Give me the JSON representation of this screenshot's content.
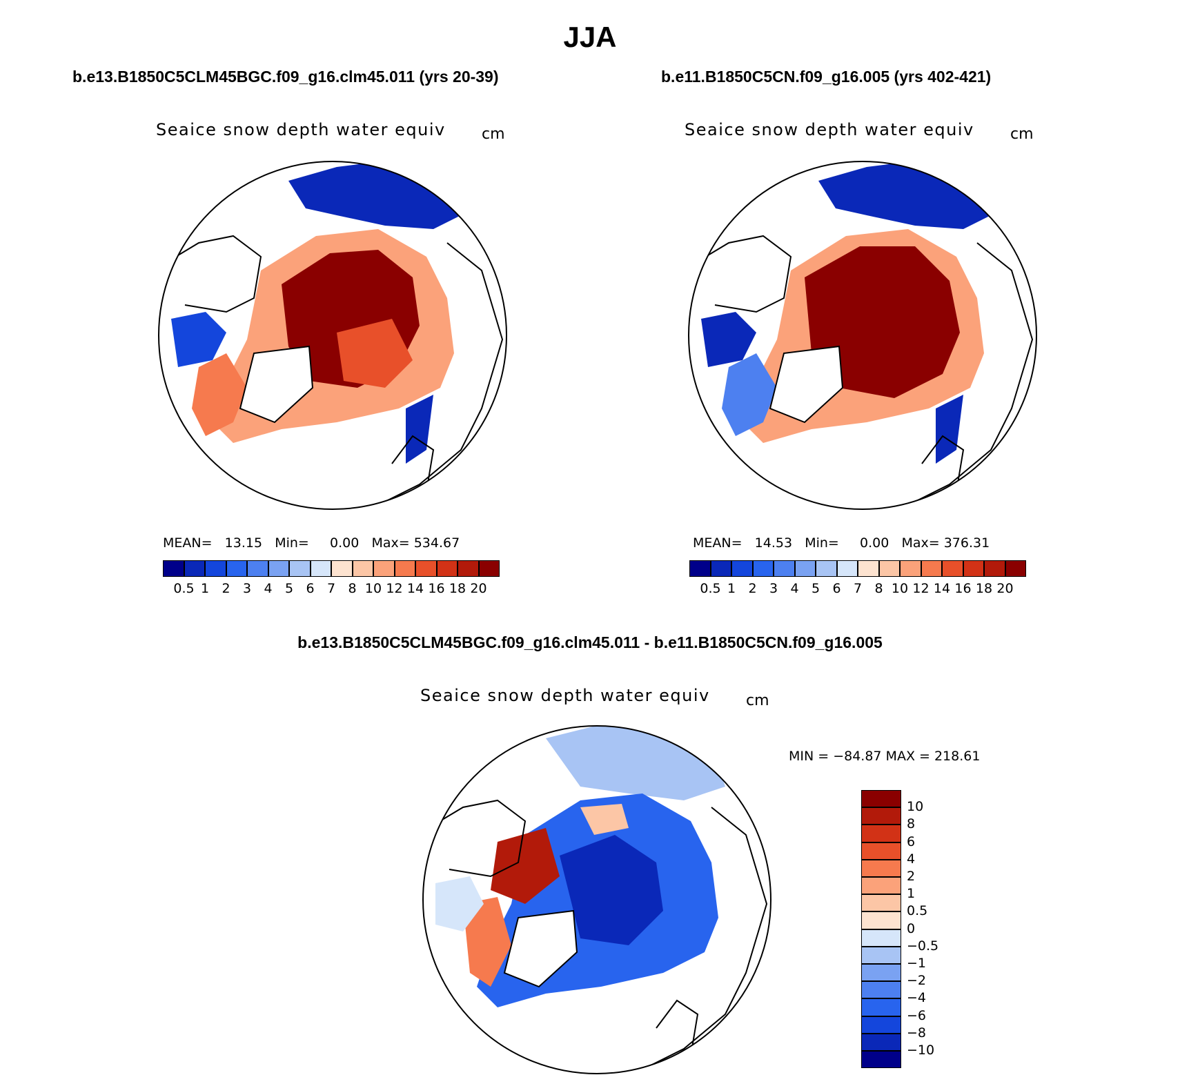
{
  "title": "JJA",
  "panels": [
    {
      "case_title": "b.e13.B1850C5CLM45BGC.f09_g16.clm45.011 (yrs 20-39)",
      "variable": "Seaice snow depth water equiv",
      "units": "cm",
      "stats": {
        "mean_label": "MEAN=",
        "mean": "13.15",
        "min_label": "Min=",
        "min": "0.00",
        "max_label": "Max=",
        "max": "534.67"
      }
    },
    {
      "case_title": "b.e11.B1850C5CN.f09_g16.005 (yrs 402-421)",
      "variable": "Seaice snow depth water equiv",
      "units": "cm",
      "stats": {
        "mean_label": "MEAN=",
        "mean": "14.53",
        "min_label": "Min=",
        "min": "0.00",
        "max_label": "Max=",
        "max": "376.31"
      }
    },
    {
      "case_title": "b.e13.B1850C5CLM45BGC.f09_g16.clm45.011 - b.e11.B1850C5CN.f09_g16.005",
      "variable": "Seaice snow depth water equiv",
      "units": "cm",
      "stats": {
        "text": "MIN = −84.87 MAX = 218.61"
      }
    }
  ],
  "colorbar_abs": {
    "labels": [
      "0.5",
      "1",
      "2",
      "3",
      "4",
      "5",
      "6",
      "7",
      "8",
      "10",
      "12",
      "14",
      "16",
      "18",
      "20"
    ],
    "colors": [
      "#00008a",
      "#0a28b8",
      "#1446dc",
      "#2864ee",
      "#4d80f0",
      "#7aa2f2",
      "#a8c4f4",
      "#d6e6fa",
      "#fde3d0",
      "#fcc6a6",
      "#fba27a",
      "#f67a4e",
      "#e8502a",
      "#d23216",
      "#b21a0a",
      "#8a0000"
    ]
  },
  "colorbar_diff": {
    "labels": [
      "10",
      "8",
      "6",
      "4",
      "2",
      "1",
      "0.5",
      "0",
      "−0.5",
      "−1",
      "−2",
      "−4",
      "−6",
      "−8",
      "−10"
    ],
    "colors": [
      "#8a0000",
      "#b21a0a",
      "#d23216",
      "#e8502a",
      "#f67a4e",
      "#fba27a",
      "#fcc6a6",
      "#fde3d0",
      "#d6e6fa",
      "#a8c4f4",
      "#7aa2f2",
      "#4d80f0",
      "#2864ee",
      "#1446dc",
      "#0a28b8",
      "#00008a"
    ]
  },
  "map_colors": {
    "land_outline": "#000000",
    "background": "#ffffff"
  }
}
